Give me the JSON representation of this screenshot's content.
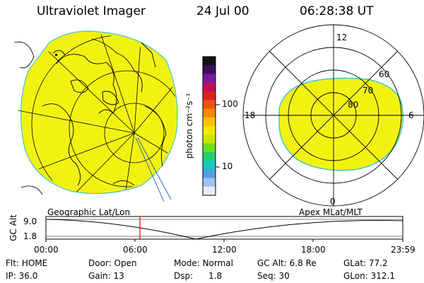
{
  "header": {
    "title": "Ultraviolet Imager",
    "date": "24 Jul 00",
    "time": "06:28:38 UT"
  },
  "colorbar": {
    "label": "photon cm⁻²s⁻¹",
    "ticks": [
      "100",
      "10"
    ],
    "colors": [
      "#111111",
      "#3a1060",
      "#7a1a9a",
      "#c0105a",
      "#e02020",
      "#f05010",
      "#f08a00",
      "#ffc000",
      "#f5e800",
      "#c8e800",
      "#6ee018",
      "#20d070",
      "#18c8c0",
      "#50a0e0",
      "#a0c0f0",
      "#e8eef8"
    ]
  },
  "geo_map": {
    "fill_color": "#f2f212",
    "edge_color": "#40c8c8"
  },
  "polar_plot": {
    "lat_labels": [
      "60",
      "70",
      "80"
    ],
    "mlt_labels": {
      "top": "12",
      "left": "18",
      "right": "6",
      "bottom": "0"
    },
    "fill_color": "#f2f212",
    "edge_color": "#40c8c8"
  },
  "orbit_plot": {
    "left_title": "Geographic Lat/Lon",
    "right_title": "Apex MLat/MLT",
    "axis_label": "GC Alt",
    "y_ticks": [
      "9.0",
      "1.8"
    ],
    "x_ticks": [
      "00:00",
      "06:00",
      "12:00",
      "18:00",
      "23:59"
    ],
    "marker_color": "#e00000"
  },
  "status": {
    "row1": [
      {
        "label": "Flt:",
        "value": "HOME"
      },
      {
        "label": "Door:",
        "value": "Open"
      },
      {
        "label": "Mode:",
        "value": "Normal"
      },
      {
        "label": "GC Alt:",
        "value": "6.8 Re"
      },
      {
        "label": "GLat:",
        "value": "77.2"
      }
    ],
    "row2": [
      {
        "label": "IP:",
        "value": "36.0"
      },
      {
        "label": "Gain:",
        "value": "13"
      },
      {
        "label": "Dsp:",
        "value": "1.8"
      },
      {
        "label": "Seq:",
        "value": "30"
      },
      {
        "label": "GLon:",
        "value": "312.1"
      }
    ]
  }
}
